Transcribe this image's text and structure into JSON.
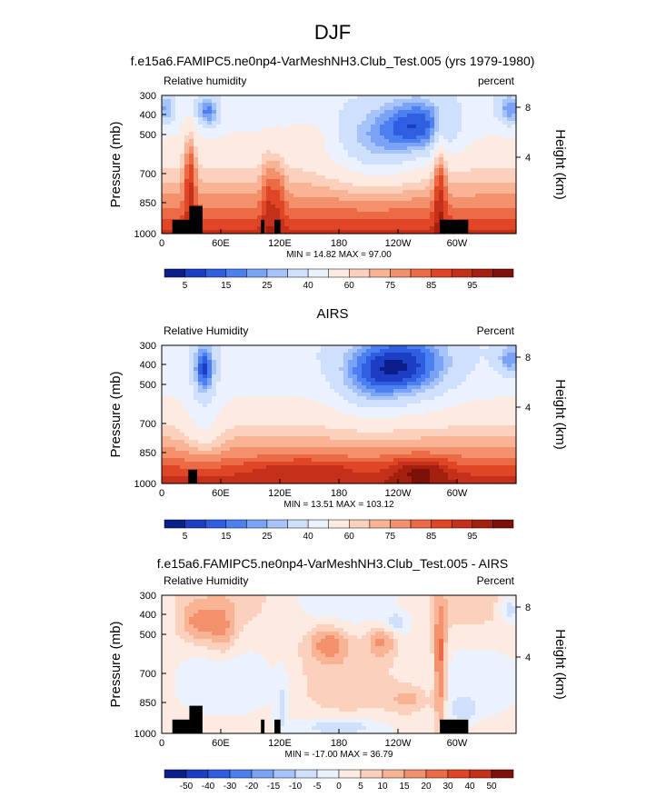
{
  "figure": {
    "title": "DJF"
  },
  "x_ticks": [
    "0",
    "60E",
    "120E",
    "180",
    "120W",
    "60W"
  ],
  "chart_data": [
    {
      "type": "heatmap",
      "title": "f.e15a6.FAMIPC5.ne0np4-VarMeshNH3.Club_Test.005 (yrs 1979-1980)",
      "subtitle_left": "Relative humidity",
      "subtitle_right": "percent",
      "ylabel": "Pressure (mb)",
      "ylabel_right": "Height (km)",
      "pressure_ticks": [
        "300",
        "400",
        "500",
        "700",
        "850",
        "1000"
      ],
      "height_ticks": [
        "8",
        "4"
      ],
      "x_ticks": [
        "0",
        "60E",
        "120E",
        "180",
        "120W",
        "60W"
      ],
      "stats": "MIN =  14.82   MAX =  97.00",
      "colorbar": {
        "labels": [
          "5",
          "15",
          "25",
          "40",
          "60",
          "75",
          "85",
          "95"
        ],
        "colors": [
          "#0b1e8a",
          "#1c3ec4",
          "#2f5fe0",
          "#4c7ff0",
          "#7aa3f5",
          "#a6c4fa",
          "#cfe0fc",
          "#ebf2fd",
          "#fdebe2",
          "#fbd1bd",
          "#f8b495",
          "#f3916c",
          "#ec6a45",
          "#e04626",
          "#c5301a",
          "#a3200f",
          "#7d1109"
        ]
      }
    },
    {
      "type": "heatmap",
      "title": "AIRS",
      "subtitle_left": "Relative Humidity",
      "subtitle_right": "Percent",
      "ylabel": "Pressure (mb)",
      "ylabel_right": "Height (km)",
      "pressure_ticks": [
        "300",
        "400",
        "500",
        "700",
        "850",
        "1000"
      ],
      "height_ticks": [
        "8",
        "4"
      ],
      "x_ticks": [
        "0",
        "60E",
        "120E",
        "180",
        "120W",
        "60W"
      ],
      "stats": "MIN =  13.51   MAX = 103.12",
      "colorbar": {
        "labels": [
          "5",
          "15",
          "25",
          "40",
          "60",
          "75",
          "85",
          "95"
        ],
        "colors": [
          "#0b1e8a",
          "#1c3ec4",
          "#2f5fe0",
          "#4c7ff0",
          "#7aa3f5",
          "#a6c4fa",
          "#cfe0fc",
          "#ebf2fd",
          "#fdebe2",
          "#fbd1bd",
          "#f8b495",
          "#f3916c",
          "#ec6a45",
          "#e04626",
          "#c5301a",
          "#a3200f",
          "#7d1109"
        ]
      }
    },
    {
      "type": "heatmap",
      "title": "f.e15a6.FAMIPC5.ne0np4-VarMeshNH3.Club_Test.005 - AIRS",
      "subtitle_left": "Relative Humidity",
      "subtitle_right": "Percent",
      "ylabel": "Pressure (mb)",
      "ylabel_right": "Height (km)",
      "pressure_ticks": [
        "300",
        "400",
        "500",
        "700",
        "850",
        "1000"
      ],
      "height_ticks": [
        "8",
        "4"
      ],
      "x_ticks": [
        "0",
        "60E",
        "120E",
        "180",
        "120W",
        "60W"
      ],
      "stats": "MIN = -17.00   MAX =  36.79",
      "colorbar": {
        "labels": [
          "-50",
          "-40",
          "-30",
          "-20",
          "-15",
          "-10",
          "-5",
          "0",
          "5",
          "10",
          "15",
          "20",
          "30",
          "40",
          "50"
        ],
        "colors": [
          "#0b1e8a",
          "#1c3ec4",
          "#2f5fe0",
          "#4c7ff0",
          "#7aa3f5",
          "#a6c4fa",
          "#cfe0fc",
          "#ebf2fd",
          "#fdebe2",
          "#fbd1bd",
          "#f8b495",
          "#f3916c",
          "#ec6a45",
          "#e04626",
          "#c5301a",
          "#7d1109"
        ]
      }
    }
  ]
}
